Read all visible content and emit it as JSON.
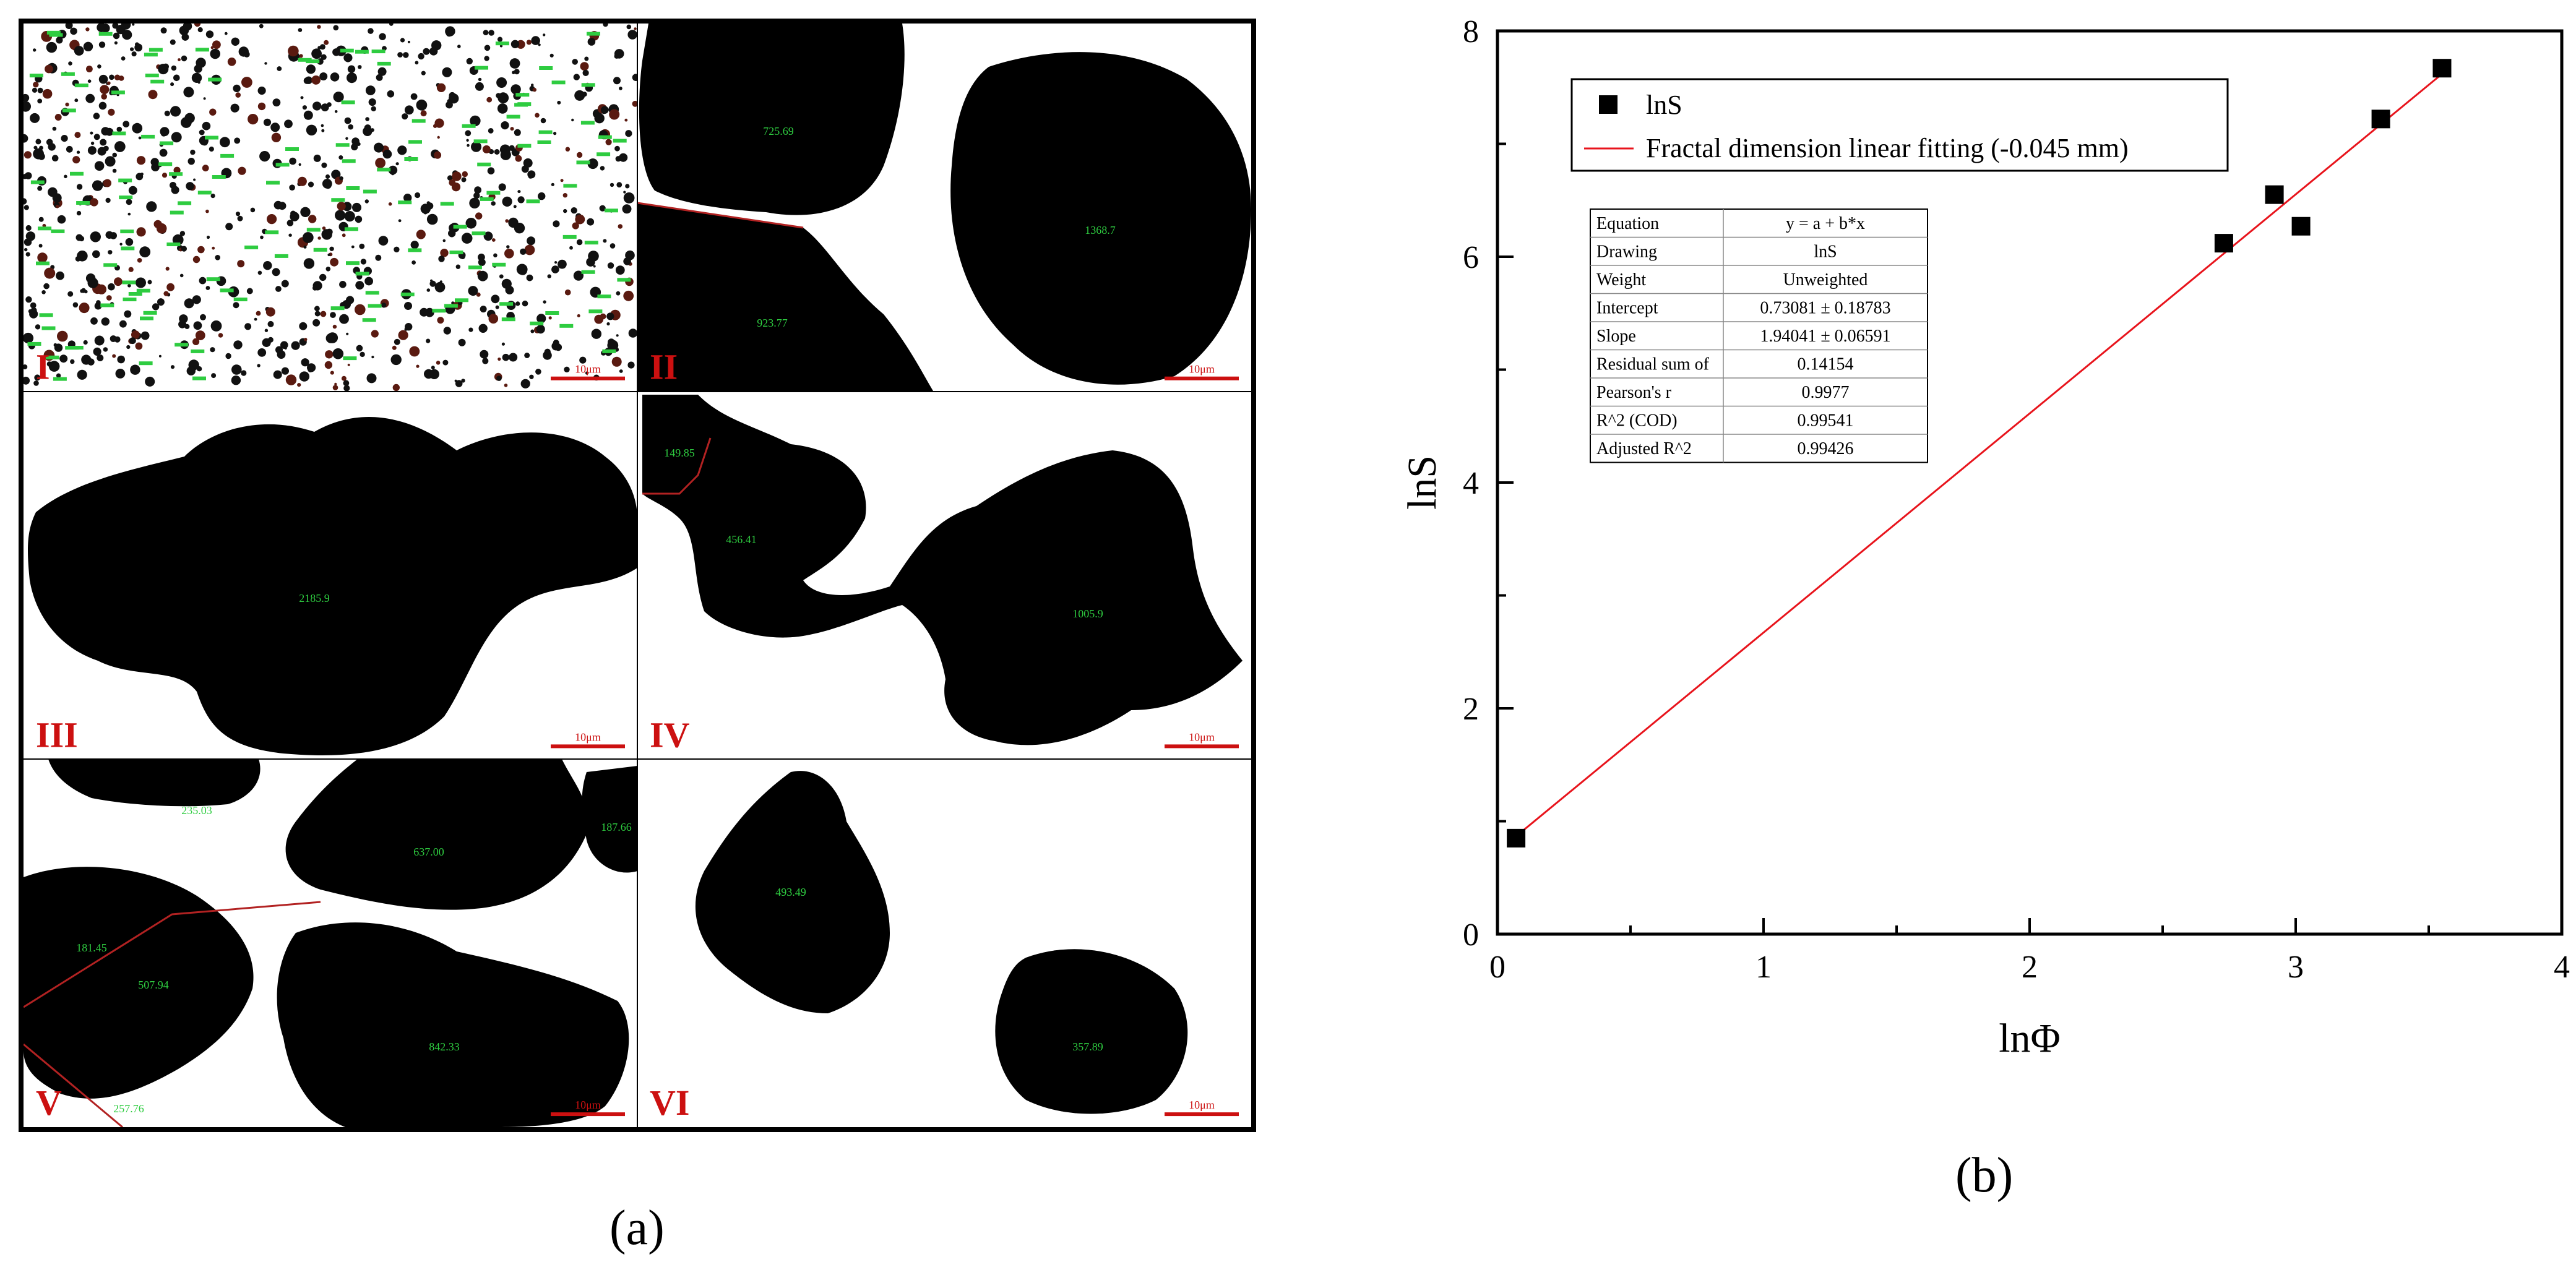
{
  "captions": {
    "a": "(a)",
    "b": "(b)"
  },
  "micrographs": {
    "scale_bar_text": "10μm",
    "tiles": [
      {
        "id": "I",
        "label": "I",
        "areas": []
      },
      {
        "id": "II",
        "label": "II",
        "areas": [
          "725.69",
          "1368.7",
          "923.77"
        ]
      },
      {
        "id": "III",
        "label": "III",
        "areas": [
          "2185.9"
        ]
      },
      {
        "id": "IV",
        "label": "IV",
        "areas": [
          "149.85",
          "456.41",
          "1005.9"
        ]
      },
      {
        "id": "V",
        "label": "V",
        "areas": [
          "235.03",
          "637.00",
          "187.66",
          "181.45",
          "507.94",
          "842.33",
          "257.76"
        ]
      },
      {
        "id": "VI",
        "label": "VI",
        "areas": [
          "493.49",
          "357.89"
        ]
      }
    ],
    "colors": {
      "particle": "#000000",
      "background": "#ffffff",
      "label": "#cc1010",
      "area_text": "#2ecc40",
      "outline": "#b22222"
    }
  },
  "chart_data": {
    "type": "scatter",
    "xlabel": "lnΦ",
    "ylabel": "lnS",
    "xlim": [
      0,
      4
    ],
    "ylim": [
      0,
      8
    ],
    "x_ticks": [
      "0",
      "1",
      "2",
      "3",
      "4"
    ],
    "y_ticks": [
      "0",
      "2",
      "4",
      "6",
      "8"
    ],
    "series": [
      {
        "name": "lnS",
        "kind": "points",
        "color": "#000000",
        "points": [
          [
            0.07,
            0.85
          ],
          [
            2.73,
            6.12
          ],
          [
            2.92,
            6.55
          ],
          [
            3.02,
            6.27
          ],
          [
            3.32,
            7.22
          ],
          [
            3.55,
            7.67
          ]
        ]
      },
      {
        "name": "Fractal dimension linear fitting (-0.045 mm)",
        "kind": "line",
        "color": "#e8141c",
        "intercept": 0.73081,
        "slope": 1.94041,
        "x_range": [
          0.07,
          3.55
        ]
      }
    ],
    "legend_position": "top-left",
    "stats_table": [
      [
        "Equation",
        "y = a + b*x"
      ],
      [
        "Drawing",
        "lnS"
      ],
      [
        "Weight",
        "Unweighted"
      ],
      [
        "Intercept",
        "0.73081 ± 0.18783"
      ],
      [
        "Slope",
        "1.94041 ± 0.06591"
      ],
      [
        "Residual sum of",
        "0.14154"
      ],
      [
        "Pearson's r",
        "0.9977"
      ],
      [
        "R^2 (COD)",
        "0.99541"
      ],
      [
        "Adjusted R^2",
        "0.99426"
      ]
    ]
  }
}
